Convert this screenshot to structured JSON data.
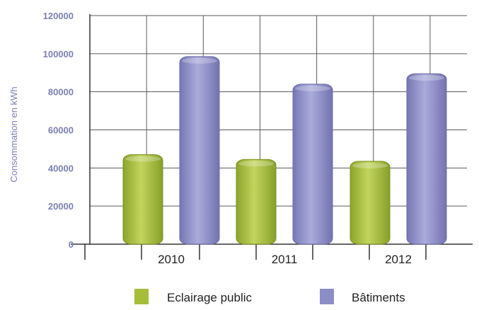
{
  "chart_data": {
    "type": "bar",
    "title": "",
    "xlabel": "",
    "ylabel": "Consommation en kWh",
    "categories": [
      "2010",
      "2011",
      "2012"
    ],
    "series": [
      {
        "name": "Eclairage public",
        "values": [
          47000,
          44500,
          43500
        ],
        "color": "#a6bd3a"
      },
      {
        "name": "Bâtiments",
        "values": [
          98500,
          84000,
          89500
        ],
        "color": "#8c8dc6"
      }
    ],
    "ylim": [
      0,
      120000
    ],
    "yticks": [
      "0",
      "20000",
      "40000",
      "60000",
      "80000",
      "100000",
      "120000"
    ],
    "grid": true,
    "legend_position": "bottom"
  }
}
